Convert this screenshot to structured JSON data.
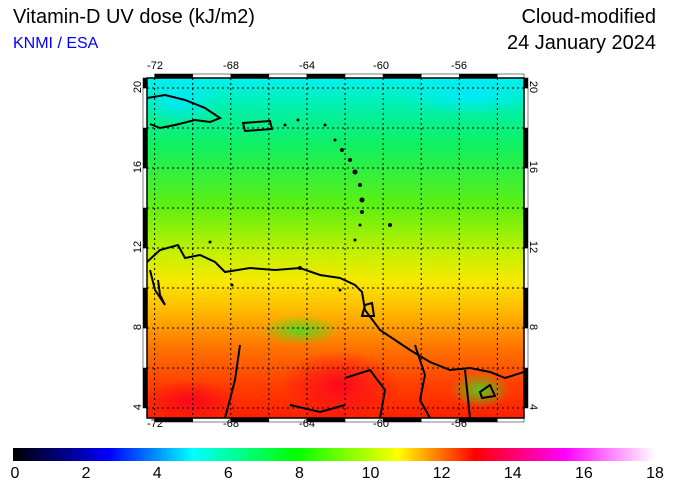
{
  "header": {
    "title": "Vitamin-D UV dose (kJ/m2)",
    "organization": "KNMI / ESA",
    "mode": "Cloud-modified",
    "date": "24 January 2024"
  },
  "map": {
    "lon_ticks": [
      "-72",
      "-68",
      "-64",
      "-60",
      "-56"
    ],
    "lat_ticks": [
      "20",
      "16",
      "12",
      "8",
      "4"
    ],
    "lon_range": [
      -72.4,
      -52.6
    ],
    "lat_range": [
      3.5,
      20.5
    ],
    "grid_step_deg": 2
  },
  "colorbar": {
    "labels": [
      "0",
      "2",
      "4",
      "6",
      "8",
      "10",
      "12",
      "14",
      "16",
      "18"
    ],
    "range": [
      0,
      18
    ],
    "colors": [
      "#000000",
      "#0000ff",
      "#00ffff",
      "#00ff00",
      "#ffff00",
      "#ff0000",
      "#ff00ff",
      "#ffffff"
    ]
  }
}
